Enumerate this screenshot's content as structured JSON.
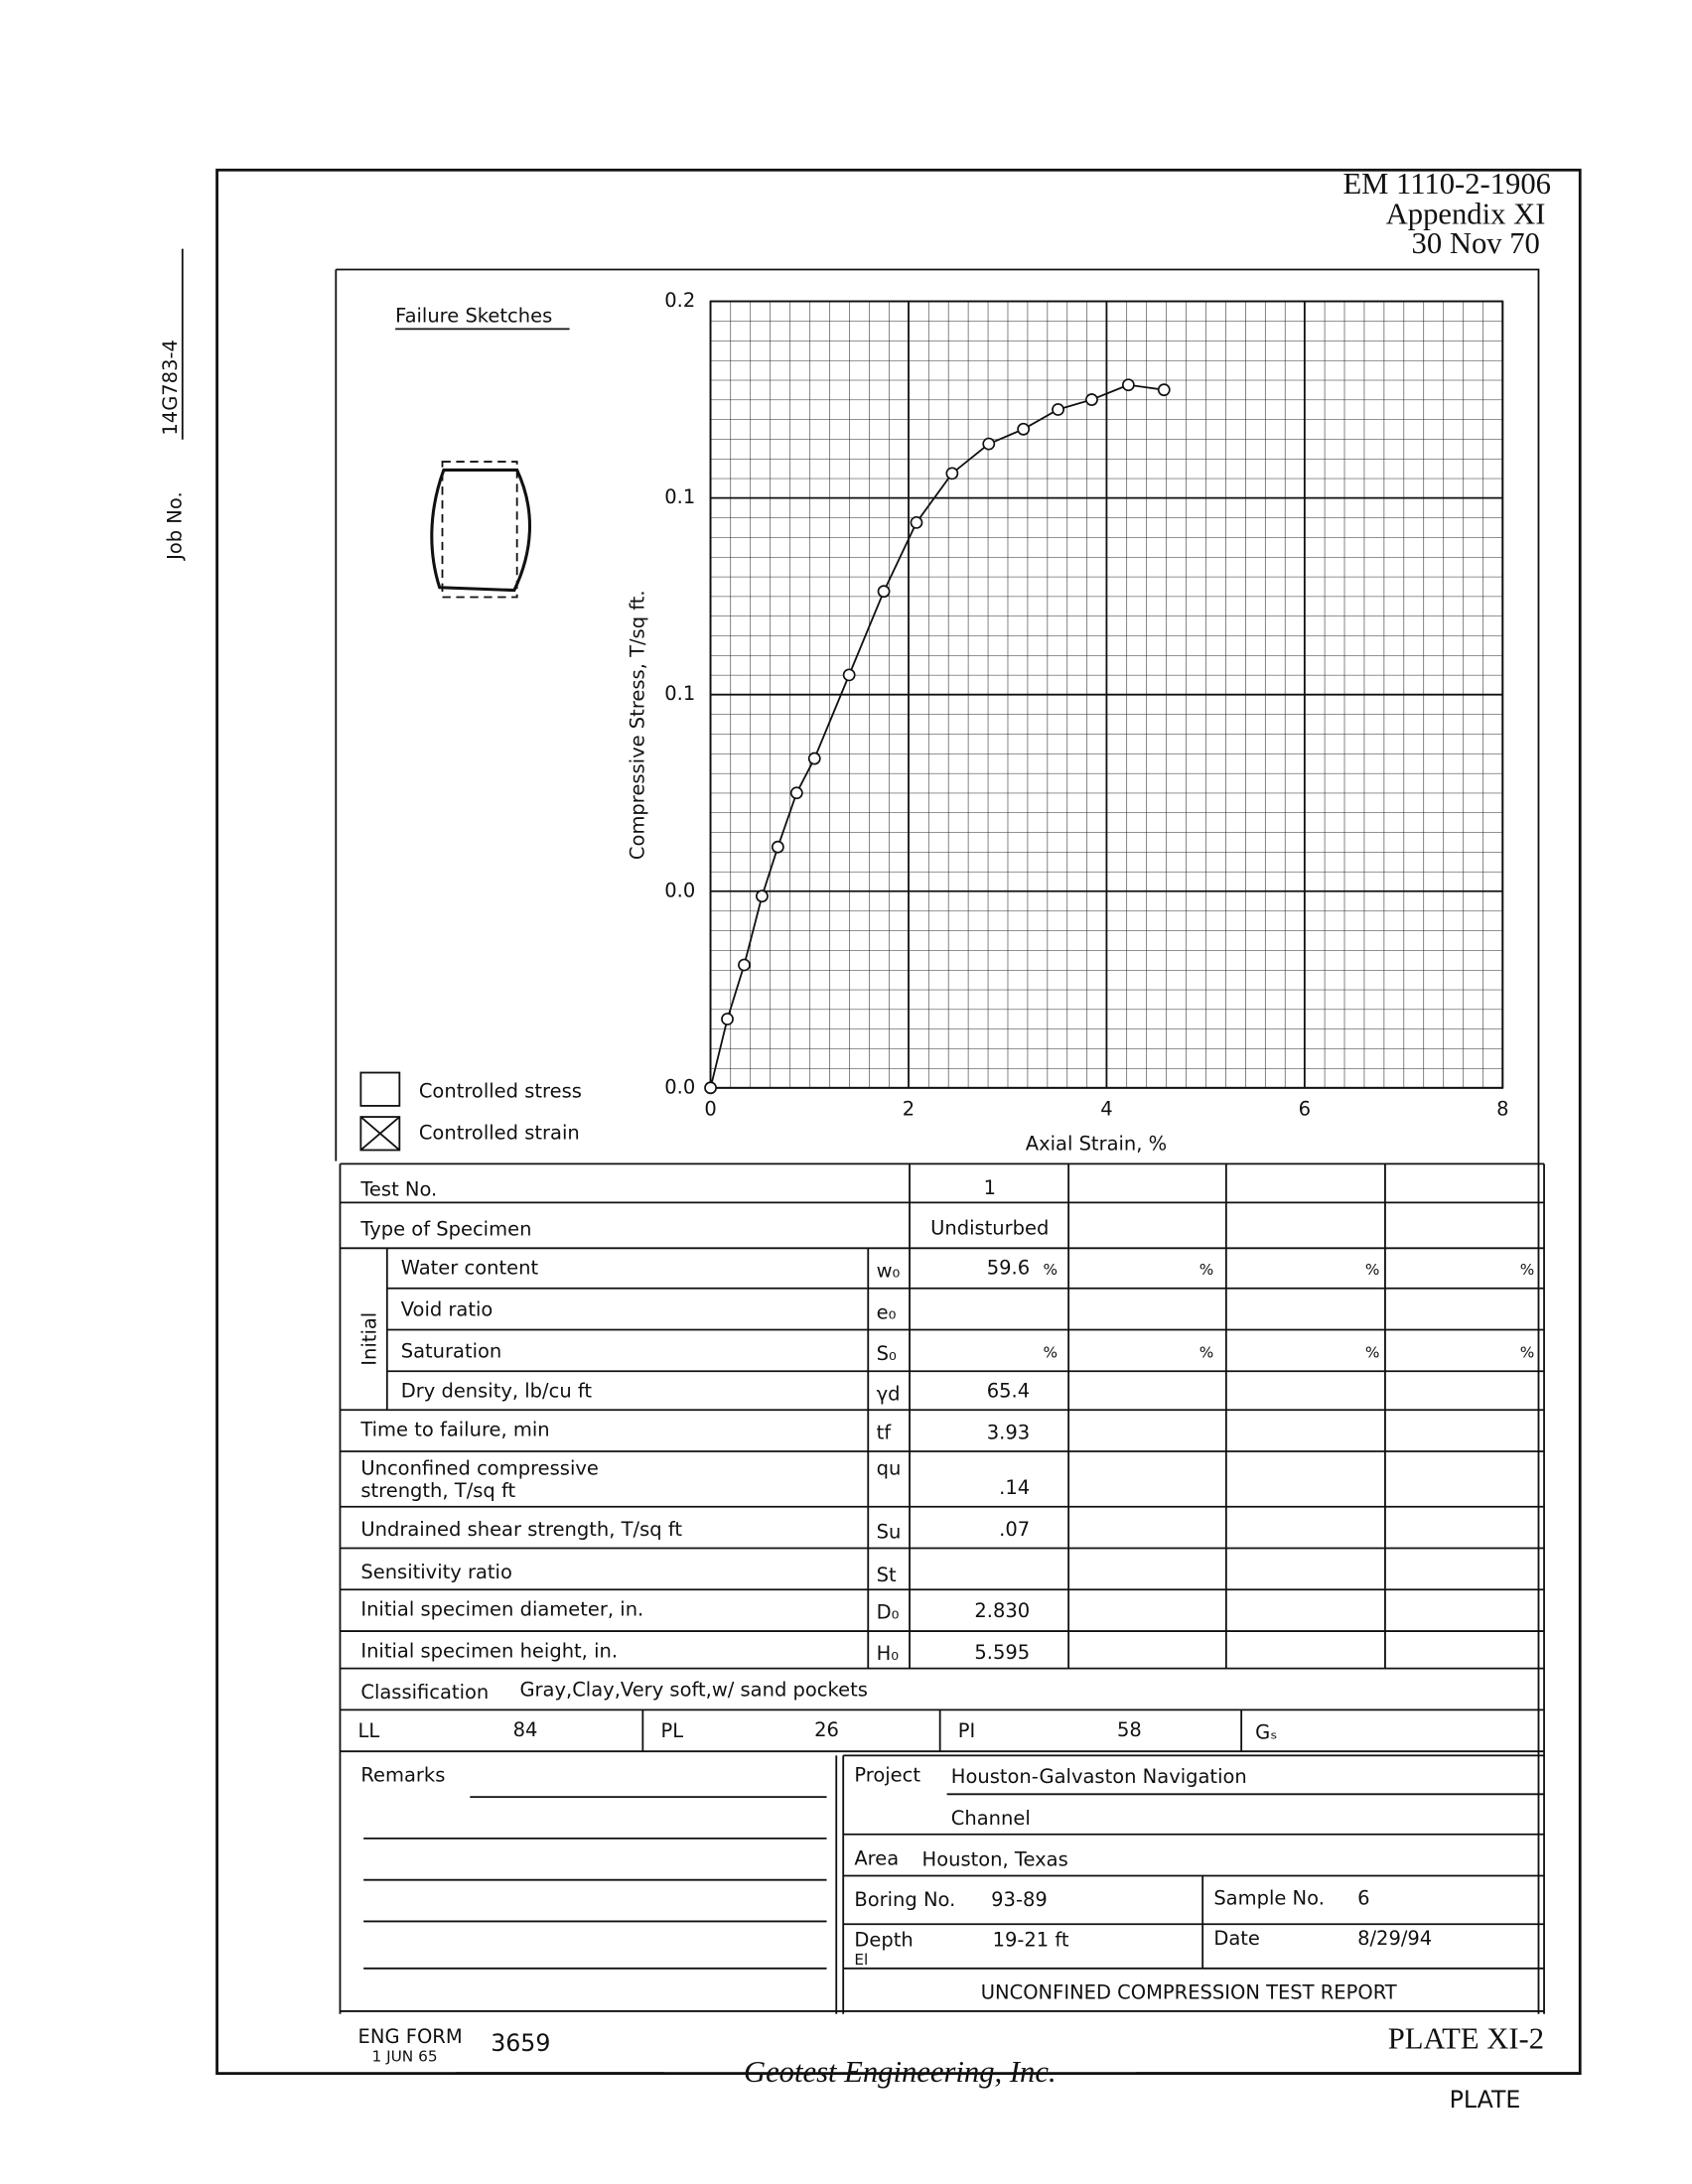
{
  "header": {
    "form_number": "EM 1110-2-1906",
    "appendix": "Appendix XI",
    "date": "30 Nov 70"
  },
  "job": {
    "label": "Job No.",
    "value": "14G783-4"
  },
  "failure_sketches": "Failure Sketches",
  "legend": [
    "Controlled stress",
    "Controlled strain"
  ],
  "chart_data": {
    "type": "line",
    "y_label": "Compressive Stress, T/sq ft.",
    "x_label": "Axial Strain, %",
    "x": [
      0,
      0.17,
      0.34,
      0.52,
      0.68,
      0.87,
      1.05,
      1.4,
      1.75,
      2.08,
      2.44,
      2.81,
      3.16,
      3.51,
      3.85,
      4.22,
      4.58
    ],
    "series": [
      {
        "color": "#111111",
        "values": [
          0,
          0.014,
          0.025,
          0.039,
          0.049,
          0.06,
          0.067,
          0.084,
          0.101,
          0.115,
          0.125,
          0.131,
          0.134,
          0.138,
          0.14,
          0.143,
          0.142
        ]
      }
    ],
    "xlim": [
      0,
      8
    ],
    "ylim": [
      0,
      0.16
    ],
    "xticks": [
      0,
      2,
      4,
      6,
      8
    ],
    "yticks": [
      {
        "value": 0,
        "label": "0.0"
      },
      {
        "value": 0.04,
        "label": "0.0"
      },
      {
        "value": 0.08,
        "label": "0.1"
      },
      {
        "value": 0.12,
        "label": "0.1"
      },
      {
        "value": 0.16,
        "label": "0.2"
      }
    ],
    "grid": true
  },
  "table": {
    "test_no_label": "Test No.",
    "test_no": "1",
    "type_label": "Type of Specimen",
    "type": "Undisturbed",
    "initial_label": "Initial",
    "percent": "%",
    "rows": [
      {
        "label": "Water content",
        "symbol": "w₀",
        "value": "59.6"
      },
      {
        "label": "Void ratio",
        "symbol": "e₀"
      },
      {
        "label": "Saturation",
        "symbol": "S₀"
      },
      {
        "label": "Dry density, lb/cu ft",
        "symbol": "γd",
        "value": "65.4"
      },
      {
        "label": "Time to failure, min",
        "symbol": "tf",
        "value": "3.93"
      },
      {
        "label": "Unconfined compressive",
        "label2": "strength, T/sq ft",
        "symbol": "qu",
        "value": ".14"
      },
      {
        "label": "Undrained shear strength, T/sq ft",
        "symbol": "Su",
        "value": ".07"
      },
      {
        "label": "Sensitivity ratio",
        "symbol": "St"
      },
      {
        "label": "Initial specimen diameter, in.",
        "symbol": "D₀",
        "value": "2.830"
      },
      {
        "label": "Initial specimen height, in.",
        "symbol": "H₀",
        "value": "5.595"
      }
    ],
    "classification_label": "Classification",
    "classification": "Gray,Clay,Very soft,w/ sand pockets",
    "ll_label": "LL",
    "ll": "84",
    "pl_label": "PL",
    "pl": "26",
    "pi_label": "PI",
    "pi": "58",
    "gs_label": "Gₛ"
  },
  "remarks_label": "Remarks",
  "project": {
    "project_label": "Project",
    "project": "Houston-Galvaston Navigation",
    "project2": "Channel",
    "area_label": "Area",
    "area": "Houston, Texas",
    "boring_label": "Boring No.",
    "boring": "93-89",
    "sample_label": "Sample No.",
    "sample": "6",
    "depth_label": "Depth",
    "depth": "19-21 ft",
    "el_label": "El",
    "date_label": "Date",
    "date": "8/29/94",
    "report_title": "UNCONFINED COMPRESSION TEST REPORT"
  },
  "footer": {
    "eng_form": "ENG FORM",
    "form_date": "1 JUN 65",
    "form_no": "3659",
    "plate": "PLATE XI-2",
    "company": "Geotest Engineering, Inc.",
    "plate_label": "PLATE"
  }
}
